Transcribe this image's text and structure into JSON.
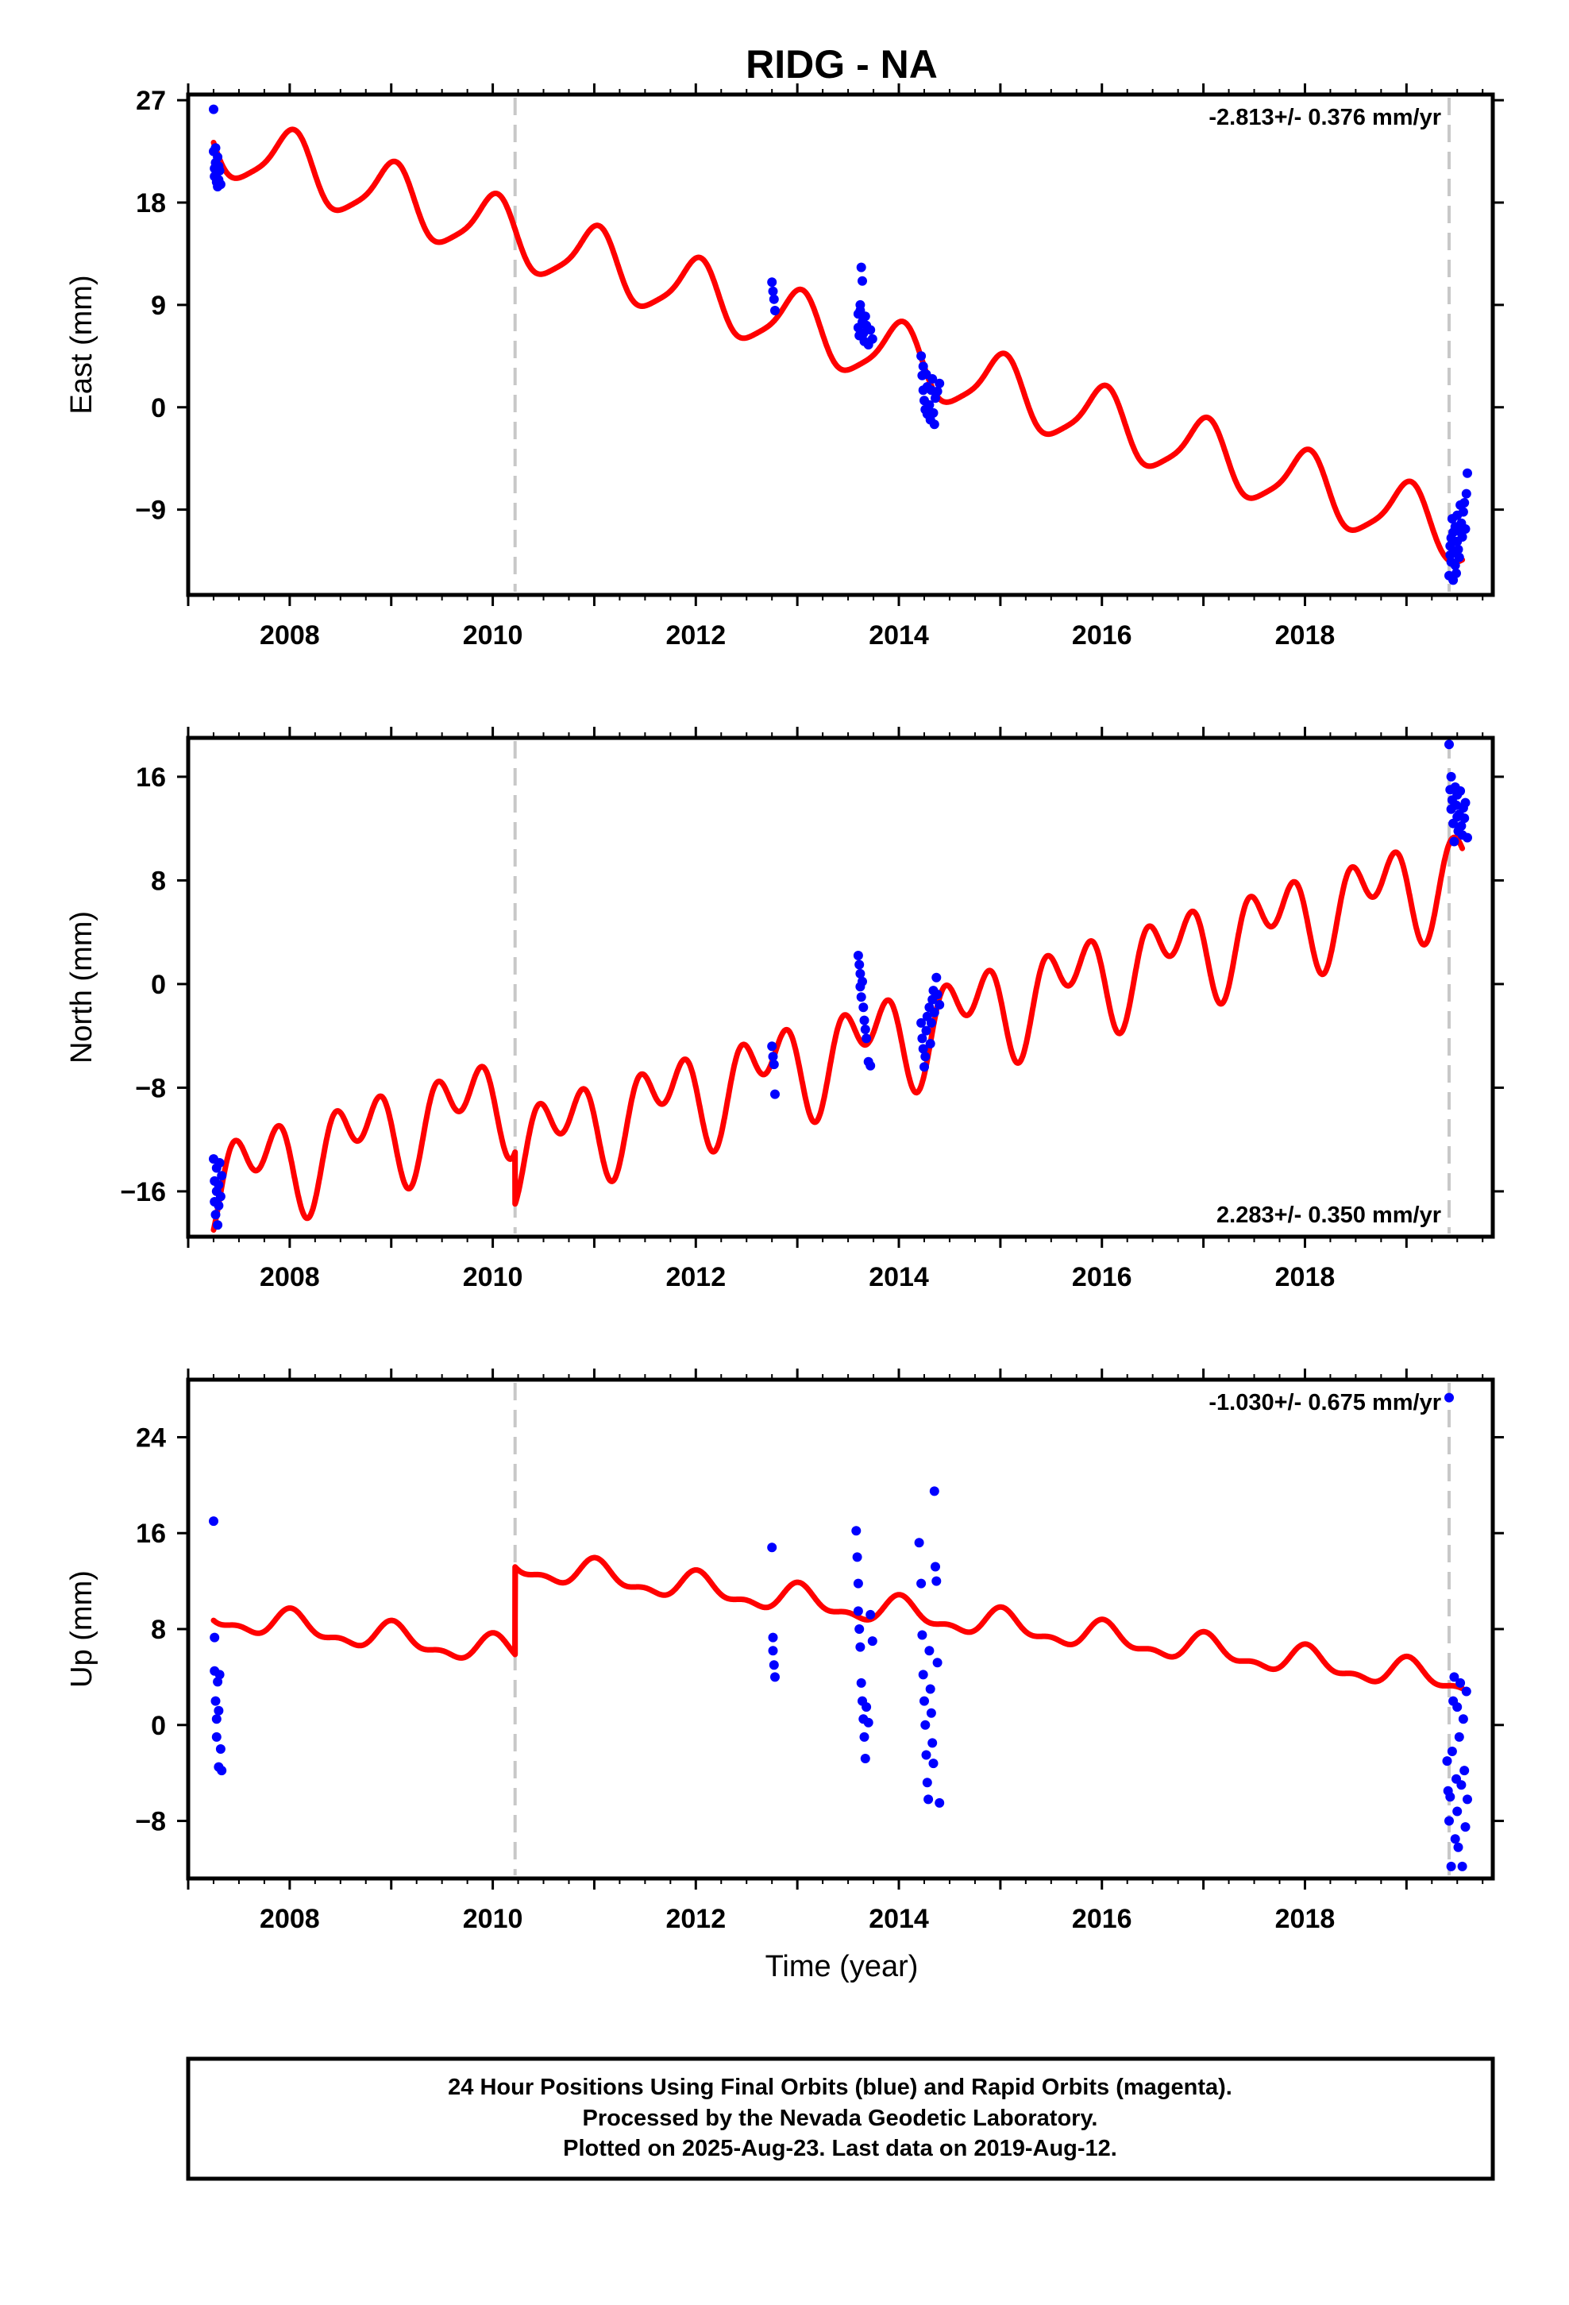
{
  "title": "RIDG - NA",
  "xlabel": "Time (year)",
  "footer": {
    "line1": "24 Hour Positions Using Final Orbits (blue) and Rapid Orbits (magenta).",
    "line2": "Processed by the Nevada Geodetic Laboratory.",
    "line3": "Plotted on 2025-Aug-23. Last data on 2019-Aug-12."
  },
  "colors": {
    "model": "#ff0000",
    "final_orbits": "#0000ff",
    "offset_line": "#c8c8c8",
    "frame": "#000000"
  },
  "chart_data": [
    {
      "type": "scatter",
      "component": "east",
      "ylabel": "East (mm)",
      "rate_label": "-2.813+/- 0.376 mm/yr",
      "rate_position": "top-right",
      "xlim": [
        2007.0,
        2019.85
      ],
      "ylim": [
        -16.5,
        27.5
      ],
      "yticks": [
        27,
        18,
        9,
        0,
        -9
      ],
      "xticks": [
        2008,
        2010,
        2012,
        2014,
        2016,
        2018
      ],
      "offsets": [
        2010.22,
        2019.42
      ],
      "model": {
        "rate": -2.813,
        "ref_year": 2013.0,
        "breaks": [
          {
            "year": 2010.22,
            "jump": 0.0
          }
        ],
        "intercept": 7.2,
        "annual": [
          0.2,
          2.8
        ],
        "semiannual": [
          0.5,
          0.3
        ],
        "span": [
          2007.25,
          2019.55
        ]
      },
      "series": [
        {
          "name": "Final Orbits",
          "x": [
            2007.25,
            2007.25,
            2007.26,
            2007.26,
            2007.27,
            2007.27,
            2007.28,
            2007.28,
            2007.29,
            2007.29,
            2007.3,
            2007.3,
            2007.31,
            2007.32,
            2012.75,
            2012.76,
            2012.77,
            2012.78,
            2013.6,
            2013.6,
            2013.61,
            2013.62,
            2013.62,
            2013.63,
            2013.64,
            2013.64,
            2013.65,
            2013.66,
            2013.67,
            2013.68,
            2013.7,
            2013.72,
            2013.74,
            2014.22,
            2014.23,
            2014.24,
            2014.24,
            2014.25,
            2014.26,
            2014.27,
            2014.28,
            2014.28,
            2014.3,
            2014.31,
            2014.32,
            2014.33,
            2014.34,
            2014.35,
            2014.36,
            2014.38,
            2014.4,
            2019.42,
            2019.43,
            2019.43,
            2019.44,
            2019.44,
            2019.45,
            2019.46,
            2019.46,
            2019.47,
            2019.48,
            2019.48,
            2019.49,
            2019.5,
            2019.5,
            2019.51,
            2019.52,
            2019.52,
            2019.53,
            2019.54,
            2019.55,
            2019.56,
            2019.57,
            2019.58,
            2019.59,
            2019.6
          ],
          "y": [
            26.2,
            22.5,
            21.0,
            20.3,
            22.8,
            21.5,
            19.8,
            20.6,
            22.0,
            19.4,
            21.2,
            20.0,
            20.8,
            19.6,
            11.0,
            10.2,
            9.5,
            8.5,
            8.2,
            7.0,
            6.3,
            9.0,
            8.5,
            12.3,
            11.1,
            7.5,
            6.5,
            5.8,
            8.0,
            7.2,
            5.5,
            6.8,
            6.0,
            4.5,
            2.8,
            3.6,
            1.5,
            0.6,
            -0.2,
            2.9,
            1.8,
            -0.6,
            0.2,
            -1.1,
            1.5,
            2.5,
            -0.5,
            -1.5,
            0.8,
            1.4,
            2.1,
            -14.8,
            -13.0,
            -12.2,
            -11.5,
            -13.6,
            -9.8,
            -15.2,
            -11.0,
            -12.8,
            -10.5,
            -13.9,
            -14.6,
            -9.5,
            -11.8,
            -12.5,
            -10.9,
            -13.2,
            -8.6,
            -10.2,
            -11.4,
            -9.2,
            -8.4,
            -10.7,
            -7.6,
            -5.8
          ]
        }
      ]
    },
    {
      "type": "scatter",
      "component": "north",
      "ylabel": "North (mm)",
      "rate_label": "2.283+/- 0.350 mm/yr",
      "rate_position": "bottom-right",
      "xlim": [
        2007.0,
        2019.85
      ],
      "ylim": [
        -19.5,
        19.0
      ],
      "yticks": [
        16,
        8,
        0,
        -8,
        -16
      ],
      "xticks": [
        2008,
        2010,
        2012,
        2014,
        2016,
        2018
      ],
      "offsets": [
        2010.22,
        2019.42
      ],
      "model": {
        "rate": 2.283,
        "ref_year": 2013.0,
        "breaks": [
          {
            "year": 2010.22,
            "jump": -4.0
          }
        ],
        "intercept": -2.15,
        "annual": [
          -2.2,
          -1.0
        ],
        "semiannual": [
          -2.0,
          1.5
        ],
        "span": [
          2007.25,
          2019.55
        ]
      },
      "series": [
        {
          "name": "Final Orbits",
          "x": [
            2007.25,
            2007.26,
            2007.26,
            2007.27,
            2007.28,
            2007.28,
            2007.29,
            2007.3,
            2007.3,
            2007.31,
            2007.32,
            2007.33,
            2012.75,
            2012.76,
            2012.77,
            2012.78,
            2013.6,
            2013.61,
            2013.62,
            2013.62,
            2013.63,
            2013.64,
            2013.65,
            2013.66,
            2013.67,
            2013.68,
            2013.7,
            2013.72,
            2014.22,
            2014.23,
            2014.24,
            2014.25,
            2014.26,
            2014.27,
            2014.28,
            2014.3,
            2014.31,
            2014.32,
            2014.33,
            2014.34,
            2014.35,
            2014.37,
            2014.38,
            2014.4,
            2019.42,
            2019.43,
            2019.44,
            2019.44,
            2019.45,
            2019.46,
            2019.47,
            2019.48,
            2019.49,
            2019.5,
            2019.5,
            2019.51,
            2019.52,
            2019.53,
            2019.54,
            2019.55,
            2019.56,
            2019.57,
            2019.58,
            2019.6
          ],
          "y": [
            -13.5,
            -15.2,
            -16.8,
            -17.8,
            -16.0,
            -14.2,
            -18.6,
            -17.1,
            -15.5,
            -13.8,
            -16.4,
            -14.8,
            -4.8,
            -5.6,
            -6.2,
            -8.5,
            2.2,
            1.5,
            0.8,
            -0.2,
            -1.0,
            0.2,
            -1.8,
            -2.8,
            -3.5,
            -4.2,
            -6.0,
            -6.3,
            -3.0,
            -4.2,
            -5.0,
            -6.4,
            -5.6,
            -3.6,
            -2.5,
            -1.8,
            -4.6,
            -3.0,
            -1.2,
            -0.5,
            -2.2,
            0.5,
            -0.8,
            -1.6,
            18.5,
            15.0,
            13.5,
            16.0,
            14.2,
            12.4,
            11.0,
            15.2,
            13.8,
            12.9,
            14.6,
            11.8,
            13.1,
            14.9,
            12.2,
            11.5,
            13.6,
            12.8,
            14.0,
            11.3
          ]
        }
      ]
    },
    {
      "type": "scatter",
      "component": "up",
      "ylabel": "Up (mm)",
      "xlabel": "Time (year)",
      "rate_label": "-1.030+/- 0.675 mm/yr",
      "rate_position": "top-right",
      "xlim": [
        2007.0,
        2019.85
      ],
      "ylim": [
        -12.8,
        28.8
      ],
      "yticks": [
        24,
        16,
        8,
        0,
        -8
      ],
      "xticks": [
        2008,
        2010,
        2012,
        2014,
        2016,
        2018
      ],
      "offsets": [
        2010.22,
        2019.42
      ],
      "model": {
        "rate": -1.03,
        "ref_year": 2013.0,
        "breaks": [
          {
            "year": 2010.22,
            "jump": 7.3
          }
        ],
        "intercept": 3.1,
        "annual": [
          0.2,
          1.0
        ],
        "semiannual": [
          0.0,
          0.5
        ],
        "span": [
          2007.25,
          2019.55
        ]
      },
      "series": [
        {
          "name": "Final Orbits",
          "x": [
            2007.25,
            2007.26,
            2007.26,
            2007.27,
            2007.28,
            2007.28,
            2007.29,
            2007.3,
            2007.3,
            2007.31,
            2007.32,
            2007.33,
            2012.75,
            2012.76,
            2012.76,
            2012.77,
            2012.78,
            2013.58,
            2013.59,
            2013.6,
            2013.6,
            2013.61,
            2013.62,
            2013.63,
            2013.64,
            2013.65,
            2013.66,
            2013.67,
            2013.68,
            2013.7,
            2013.72,
            2013.74,
            2014.2,
            2014.22,
            2014.23,
            2014.24,
            2014.25,
            2014.26,
            2014.27,
            2014.28,
            2014.29,
            2014.3,
            2014.31,
            2014.32,
            2014.33,
            2014.34,
            2014.35,
            2014.36,
            2014.37,
            2014.38,
            2014.4,
            2019.4,
            2019.41,
            2019.42,
            2019.42,
            2019.43,
            2019.44,
            2019.45,
            2019.46,
            2019.47,
            2019.48,
            2019.49,
            2019.5,
            2019.5,
            2019.51,
            2019.52,
            2019.53,
            2019.54,
            2019.55,
            2019.56,
            2019.57,
            2019.58,
            2019.59,
            2019.6
          ],
          "y": [
            17.0,
            7.3,
            4.5,
            2.0,
            0.5,
            -1.0,
            3.6,
            -3.5,
            1.2,
            4.2,
            -2.0,
            -3.8,
            14.8,
            7.3,
            6.2,
            5.0,
            4.0,
            16.2,
            14.0,
            11.8,
            9.5,
            8.0,
            6.5,
            3.5,
            2.0,
            0.5,
            -1.0,
            -2.8,
            1.5,
            0.2,
            9.2,
            7.0,
            15.2,
            11.8,
            7.5,
            4.2,
            2.0,
            0.0,
            -2.5,
            -4.8,
            -6.2,
            6.2,
            3.0,
            1.0,
            -1.5,
            -3.2,
            19.5,
            13.2,
            12.0,
            5.2,
            -6.5,
            -3.0,
            -5.5,
            27.3,
            -8.0,
            -6.0,
            -11.8,
            -2.2,
            2.0,
            4.0,
            -9.5,
            -4.5,
            1.5,
            -7.2,
            -10.2,
            -1.0,
            3.5,
            -5.0,
            -11.8,
            0.5,
            -3.8,
            -8.5,
            2.8,
            -6.2
          ]
        }
      ]
    }
  ]
}
